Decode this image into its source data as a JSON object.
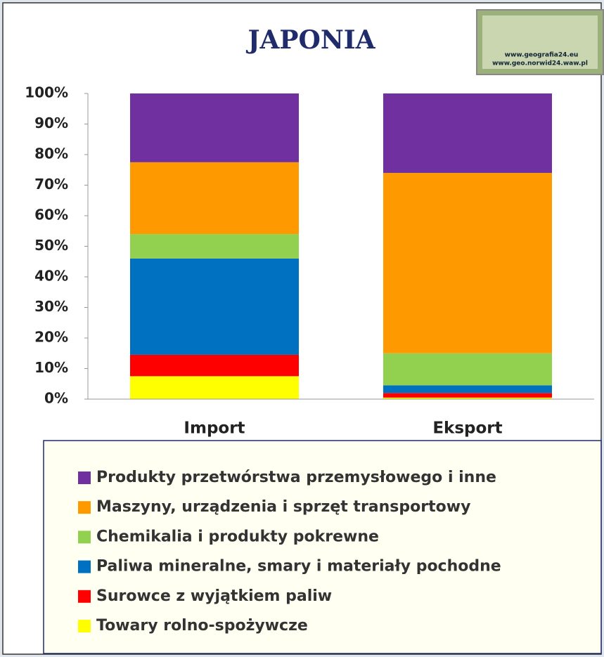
{
  "chart_data": {
    "type": "stacked-bar",
    "title": "JAPONIA",
    "annotations": [
      "www.geografia24.eu",
      "www.geo.norwid24.waw.pl"
    ],
    "categories": [
      "Import",
      "Eksport"
    ],
    "series": [
      {
        "name": "Towary  rolno-spożywcze",
        "color": "#ffff00",
        "values": [
          7.5,
          0.5
        ]
      },
      {
        "name": "Surowce z wyjątkiem paliw",
        "color": "#ff0000",
        "values": [
          7,
          1.5
        ]
      },
      {
        "name": "Paliwa mineralne, smary i materiały pochodne",
        "color": "#0070c0",
        "values": [
          31.5,
          2.5
        ]
      },
      {
        "name": "Chemikalia i produkty pokrewne",
        "color": "#92d050",
        "values": [
          8,
          10.5
        ]
      },
      {
        "name": "Maszyny, urządzenia i sprzęt transportowy",
        "color": "#ff9900",
        "values": [
          23.5,
          59
        ]
      },
      {
        "name": "Produkty przetwórstwa przemysłowego i inne",
        "color": "#7030a0",
        "values": [
          22.5,
          26
        ]
      }
    ],
    "ylim": [
      0,
      100
    ],
    "yticks": [
      {
        "value": 0,
        "label": "0%"
      },
      {
        "value": 10,
        "label": "10%"
      },
      {
        "value": 20,
        "label": "20%"
      },
      {
        "value": 30,
        "label": "30%"
      },
      {
        "value": 40,
        "label": "40%"
      },
      {
        "value": 50,
        "label": "50%"
      },
      {
        "value": 60,
        "label": "60%"
      },
      {
        "value": 70,
        "label": "70%"
      },
      {
        "value": 80,
        "label": "80%"
      },
      {
        "value": 90,
        "label": "90%"
      },
      {
        "value": 100,
        "label": "100%"
      }
    ],
    "grid": false
  }
}
